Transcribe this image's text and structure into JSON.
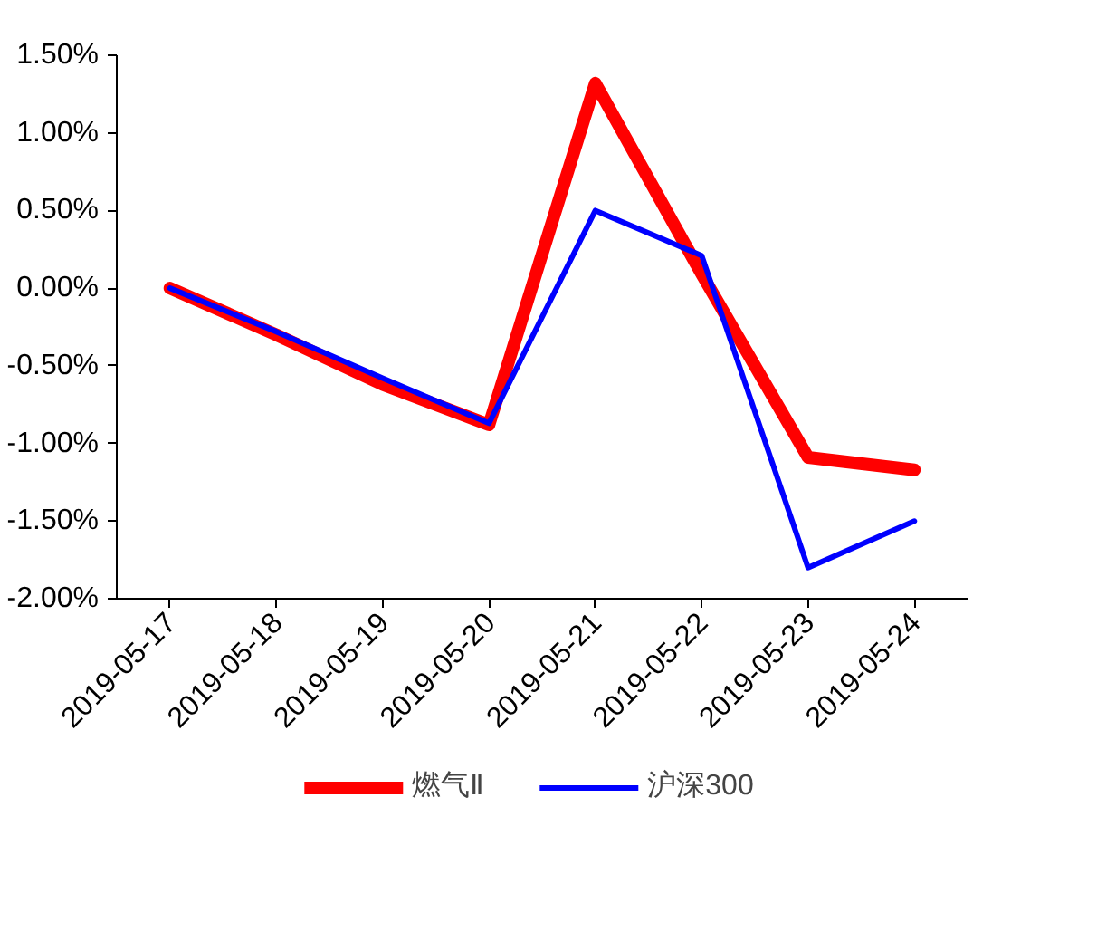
{
  "chart_data": {
    "type": "line",
    "categories": [
      "2019-05-17",
      "2019-05-18",
      "2019-05-19",
      "2019-05-20",
      "2019-05-21",
      "2019-05-22",
      "2019-05-23",
      "2019-05-24"
    ],
    "series": [
      {
        "name": "燃气Ⅱ",
        "color": "#ff0000",
        "values": [
          0.0,
          -0.3,
          -0.62,
          -0.88,
          1.32,
          0.09,
          -1.09,
          -1.17
        ]
      },
      {
        "name": "沪深300",
        "color": "#0000ff",
        "values": [
          0.0,
          -0.28,
          -0.58,
          -0.87,
          0.5,
          0.21,
          -1.8,
          -1.5
        ]
      }
    ],
    "ylim": [
      -2.0,
      1.5
    ],
    "yticks": [
      {
        "value": -2.0,
        "label": "-2.00%"
      },
      {
        "value": -1.5,
        "label": "-1.50%"
      },
      {
        "value": -1.0,
        "label": "-1.00%"
      },
      {
        "value": -0.5,
        "label": "-0.50%"
      },
      {
        "value": 0.0,
        "label": "0.00%"
      },
      {
        "value": 0.5,
        "label": "0.50%"
      },
      {
        "value": 1.0,
        "label": "1.00%"
      },
      {
        "value": 1.5,
        "label": "1.50%"
      }
    ],
    "grid": false,
    "legend": "bottom",
    "marker": "none",
    "line_style": "solid"
  }
}
